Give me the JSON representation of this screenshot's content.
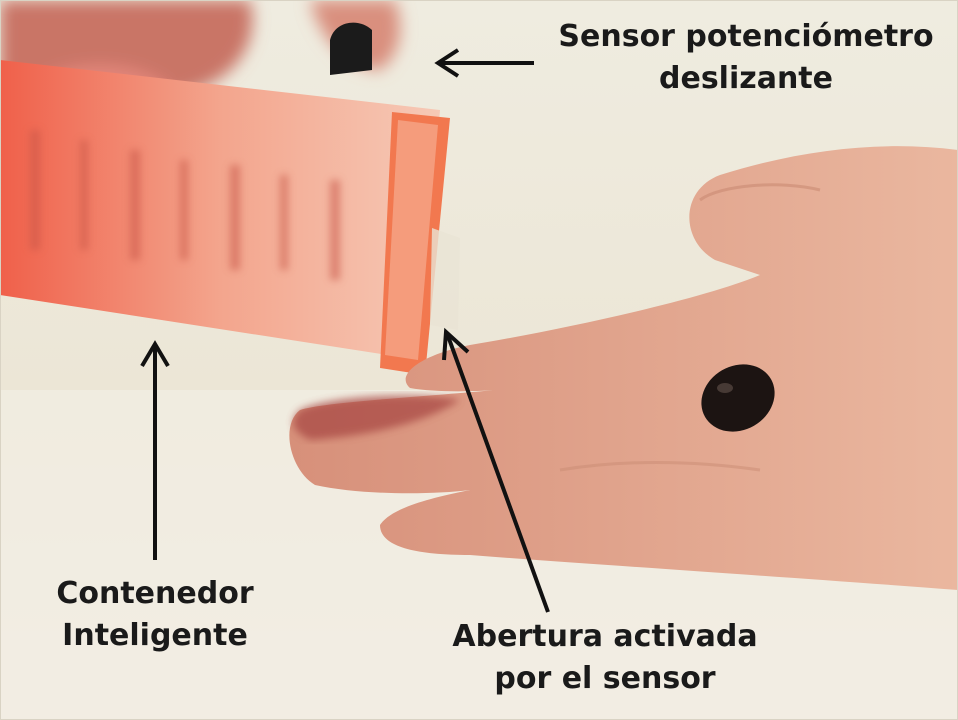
{
  "annotations": {
    "sensor": {
      "line1": "Sensor potenciómetro",
      "line2": "deslizante"
    },
    "contenedor": {
      "line1": "Contenedor",
      "line2": "Inteligente"
    },
    "abertura": {
      "line1": "Abertura activada",
      "line2": "por el sensor"
    }
  },
  "colors": {
    "background": "#efeadd",
    "container": "#f07a5c",
    "skin": "#e3a58c",
    "text": "#1a1a1a"
  }
}
